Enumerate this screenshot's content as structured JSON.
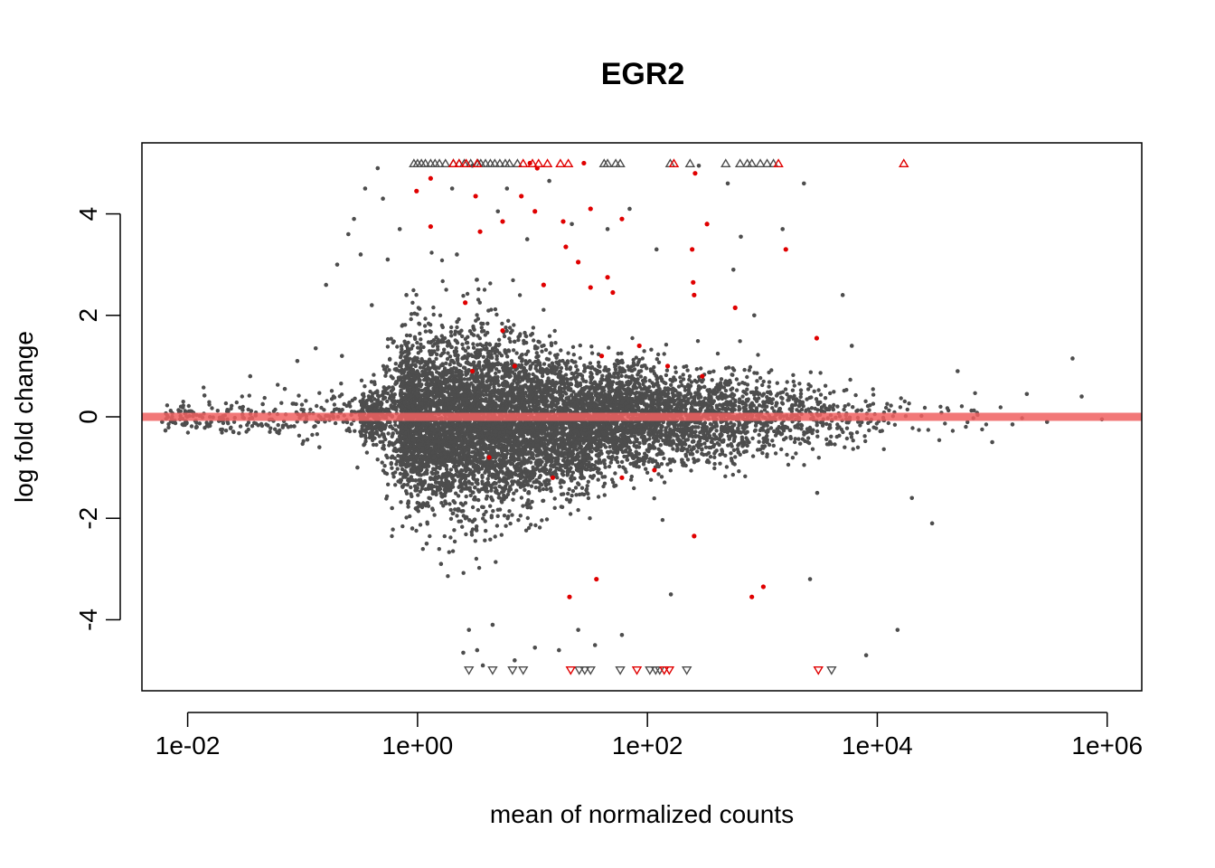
{
  "chart_data": {
    "type": "scatter",
    "title": "EGR2",
    "xlabel": "mean of normalized counts",
    "ylabel": "log fold change",
    "x_scale": "log10",
    "xlim": [
      0.004,
      2000000
    ],
    "ylim": [
      -5.4,
      5.4
    ],
    "x_ticks": [
      {
        "value": 0.01,
        "label": "1e-02"
      },
      {
        "value": 1,
        "label": "1e+00"
      },
      {
        "value": 100,
        "label": "1e+02"
      },
      {
        "value": 10000,
        "label": "1e+04"
      },
      {
        "value": 1000000,
        "label": "1e+06"
      }
    ],
    "y_ticks": [
      {
        "value": -4,
        "label": "-4"
      },
      {
        "value": -2,
        "label": "-2"
      },
      {
        "value": 0,
        "label": "0"
      },
      {
        "value": 2,
        "label": "2"
      },
      {
        "value": 4,
        "label": "4"
      }
    ],
    "reference_line": {
      "y": 0,
      "color": "#f06060"
    },
    "colors": {
      "not_significant": "#4d4d4d",
      "significant": "#e00000"
    },
    "series": [
      {
        "color": "#e00000",
        "points": [
          [
            1.3,
            4.7
          ],
          [
            0.98,
            4.45
          ],
          [
            1.3,
            3.75
          ],
          [
            2.6,
            2.25
          ],
          [
            3.2,
            4.35
          ],
          [
            3.5,
            3.65
          ],
          [
            5.5,
            3.85
          ],
          [
            8,
            4.35
          ],
          [
            10.5,
            4.05
          ],
          [
            11,
            4.9
          ],
          [
            12.5,
            2.6
          ],
          [
            18.5,
            3.85
          ],
          [
            19.5,
            3.35
          ],
          [
            25,
            3.05
          ],
          [
            32,
            4.1
          ],
          [
            32,
            2.55
          ],
          [
            45,
            2.75
          ],
          [
            50,
            2.45
          ],
          [
            60,
            3.9
          ],
          [
            115,
            -1.05
          ],
          [
            245,
            3.3
          ],
          [
            250,
            2.65
          ],
          [
            255,
            2.4
          ],
          [
            255,
            -2.35
          ],
          [
            260,
            4.8
          ],
          [
            330,
            3.8
          ],
          [
            580,
            2.15
          ],
          [
            810,
            -3.55
          ],
          [
            1020,
            -3.35
          ],
          [
            1600,
            3.3
          ],
          [
            2970,
            1.55
          ],
          [
            36,
            -3.2
          ],
          [
            21,
            -3.55
          ],
          [
            9.5,
            5.0
          ],
          [
            28,
            5.0
          ],
          [
            5.5,
            1.7
          ],
          [
            7,
            1.0
          ],
          [
            3,
            0.9
          ],
          [
            40,
            1.2
          ],
          [
            150,
            1.0
          ],
          [
            15,
            -1.2
          ],
          [
            60,
            -1.2
          ],
          [
            300,
            0.8
          ],
          [
            4.2,
            -0.8
          ],
          [
            85,
            1.4
          ]
        ]
      },
      {
        "color": "#4d4d4d",
        "points": [
          [
            0.006,
            -0.1
          ],
          [
            0.009,
            -0.15
          ],
          [
            0.012,
            -0.2
          ],
          [
            0.016,
            -0.1
          ],
          [
            0.014,
            0.42
          ],
          [
            0.02,
            -0.25
          ],
          [
            0.025,
            -0.3
          ],
          [
            0.03,
            0.05
          ],
          [
            0.035,
            0.8
          ],
          [
            0.045,
            0.25
          ],
          [
            0.06,
            -0.3
          ],
          [
            0.07,
            0.55
          ],
          [
            0.09,
            1.1
          ],
          [
            0.11,
            -0.45
          ],
          [
            0.13,
            1.35
          ],
          [
            0.14,
            -0.6
          ],
          [
            0.16,
            2.6
          ],
          [
            0.2,
            3.0
          ],
          [
            0.22,
            1.2
          ],
          [
            0.25,
            3.6
          ],
          [
            0.28,
            3.9
          ],
          [
            0.3,
            -1.0
          ],
          [
            0.32,
            3.2
          ],
          [
            0.35,
            4.5
          ],
          [
            0.4,
            2.2
          ],
          [
            0.45,
            4.9
          ],
          [
            0.5,
            4.3
          ],
          [
            0.55,
            3.1
          ],
          [
            0.6,
            -1.8
          ],
          [
            0.7,
            3.7
          ],
          [
            0.8,
            2.4
          ],
          [
            0.9,
            -2.2
          ],
          [
            1.2,
            -2.5
          ],
          [
            1.6,
            -2.9
          ],
          [
            2.0,
            4.5
          ],
          [
            2.2,
            3.2
          ],
          [
            2.5,
            -4.65
          ],
          [
            2.8,
            -4.2
          ],
          [
            3.0,
            4.95
          ],
          [
            3.3,
            -4.6
          ],
          [
            3.7,
            -4.9
          ],
          [
            4.5,
            -4.1
          ],
          [
            5.0,
            4.05
          ],
          [
            6.0,
            4.5
          ],
          [
            7.0,
            -4.8
          ],
          [
            9.0,
            3.5
          ],
          [
            10.5,
            -4.55
          ],
          [
            14.0,
            4.65
          ],
          [
            17.0,
            -4.6
          ],
          [
            22.0,
            3.8
          ],
          [
            25.0,
            -4.2
          ],
          [
            35.0,
            -4.5
          ],
          [
            45.0,
            3.7
          ],
          [
            60.0,
            -4.3
          ],
          [
            70.0,
            4.1
          ],
          [
            120.0,
            3.3
          ],
          [
            160.0,
            -3.5
          ],
          [
            280.0,
            4.95
          ],
          [
            500.0,
            4.6
          ],
          [
            560.0,
            2.9
          ],
          [
            650.0,
            3.55
          ],
          [
            850.0,
            2.0
          ],
          [
            1500.0,
            3.7
          ],
          [
            2300.0,
            4.6
          ],
          [
            2600.0,
            -3.2
          ],
          [
            5000.0,
            2.4
          ],
          [
            8000.0,
            -4.7
          ],
          [
            15000.0,
            -4.2
          ],
          [
            30000.0,
            -2.1
          ],
          [
            100000.0,
            -0.5
          ],
          [
            200000.0,
            0.45
          ],
          [
            500000.0,
            1.15
          ],
          [
            600000.0,
            0.4
          ],
          [
            900000.0,
            -0.05
          ],
          [
            300000.0,
            -0.1
          ],
          [
            150000.0,
            -0.15
          ],
          [
            50000.0,
            0.9
          ],
          [
            20000.0,
            -1.6
          ],
          [
            6000.0,
            1.4
          ],
          [
            3000.0,
            -1.5
          ]
        ]
      }
    ],
    "offscale_points": [
      {
        "direction": "up",
        "color": "#4d4d4d",
        "x": [
          0.93,
          1.0,
          1.08,
          1.17,
          1.3,
          1.42,
          1.55,
          1.75,
          2.05,
          2.3,
          2.55,
          2.9,
          3.35,
          3.55,
          3.9,
          4.3,
          4.7,
          5.2,
          5.8,
          6.3,
          7.4,
          42,
          45,
          53,
          58,
          158,
          235,
          480,
          640,
          740,
          810,
          960,
          1100,
          1250
        ]
      },
      {
        "direction": "up",
        "color": "#e00000",
        "x": [
          2.05,
          2.3,
          2.65,
          3.3,
          8.3,
          10.0,
          11.3,
          13.5,
          17.5,
          20.5,
          170,
          1380,
          17000
        ]
      },
      {
        "direction": "down",
        "color": "#4d4d4d",
        "x": [
          2.8,
          4.5,
          6.7,
          8.3,
          25.5,
          28.5,
          32,
          58,
          105,
          118,
          128,
          220,
          4000
        ]
      },
      {
        "direction": "down",
        "color": "#e00000",
        "x": [
          21.5,
          81,
          140,
          155,
          3070
        ]
      }
    ]
  }
}
